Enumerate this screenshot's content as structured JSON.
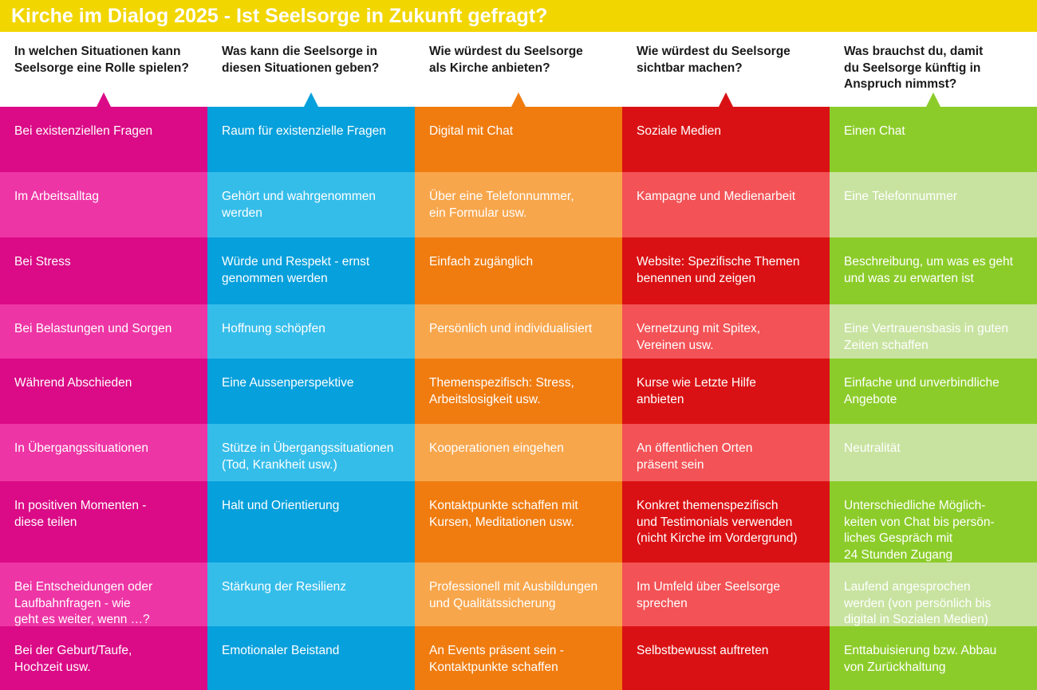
{
  "title": "Kirche im Dialog 2025 - Ist Seelsorge in Zukunft gefragt?",
  "colors": {
    "title_bar": "#f2d600",
    "columns": [
      {
        "dark": "#db0a86",
        "light": "#ee35a5"
      },
      {
        "dark": "#06a0dc",
        "light": "#35bdea"
      },
      {
        "dark": "#f07c10",
        "light": "#f8a64c"
      },
      {
        "dark": "#da1114",
        "light": "#f35256"
      },
      {
        "dark": "#8ccc2a",
        "light": "#c8e3a0"
      }
    ]
  },
  "columns": [
    {
      "heading": "In welchen Situationen kann\nSeelsorge eine Rolle spielen?",
      "items": [
        "Bei existenziellen Fragen",
        "Im Arbeitsalltag",
        "Bei Stress",
        "Bei Belastungen und Sorgen",
        "Während Abschieden",
        "In Übergangssituationen",
        "In positiven Momenten -\ndiese teilen",
        "Bei Entscheidungen oder\nLaufbahnfragen - wie\ngeht es weiter, wenn …?",
        "Bei der Geburt/Taufe,\nHochzeit usw."
      ]
    },
    {
      "heading": "Was kann die Seelsorge in\ndiesen Situationen geben?",
      "items": [
        "Raum für existenzielle Fragen",
        "Gehört und wahrgenommen\nwerden",
        "Würde und Respekt - ernst\ngenommen werden",
        "Hoffnung schöpfen",
        "Eine Aussenperspektive",
        "Stütze in Übergangssituationen\n(Tod, Krankheit usw.)",
        "Halt und Orientierung",
        "Stärkung der Resilienz",
        "Emotionaler Beistand"
      ]
    },
    {
      "heading": "Wie würdest du Seelsorge\nals Kirche anbieten?",
      "items": [
        "Digital mit Chat",
        "Über eine Telefonnummer,\nein Formular usw.",
        "Einfach zugänglich",
        "Persönlich und individualisiert",
        "Themenspezifisch: Stress,\nArbeitslosigkeit usw.",
        "Kooperationen eingehen",
        "Kontaktpunkte schaffen mit\nKursen, Meditationen usw.",
        "Professionell mit Ausbildungen\nund Qualitätssicherung",
        "An Events präsent sein -\nKontaktpunkte schaffen"
      ]
    },
    {
      "heading": "Wie würdest du Seelsorge\nsichtbar machen?",
      "items": [
        "Soziale Medien",
        "Kampagne und Medienarbeit",
        "Website: Spezifische Themen\nbenennen und zeigen",
        "Vernetzung mit Spitex,\nVereinen usw.",
        "Kurse wie Letzte Hilfe\nanbieten",
        "An öffentlichen Orten\npräsent sein",
        "Konkret themenspezifisch\nund Testimonials verwenden\n(nicht Kirche im Vordergrund)",
        "Im Umfeld über Seelsorge\nsprechen",
        "Selbstbewusst auftreten"
      ]
    },
    {
      "heading": "Was brauchst du, damit\ndu Seelsorge künftig in\nAnspruch nimmst?",
      "items": [
        "Einen Chat",
        "Eine Telefonnummer",
        "Beschreibung, um was es geht\nund was zu erwarten ist",
        "Eine Vertrauensbasis in guten\nZeiten schaffen",
        "Einfache und unverbindliche\nAngebote",
        "Neutralität",
        "Unterschiedliche Möglich-\nkeiten von Chat bis persön-\nliches Gespräch mit\n24 Stunden Zugang",
        "Laufend angesprochen\nwerden (von persönlich bis\ndigital in Sozialen Medien)",
        "Enttabuisierung bzw. Abbau\nvon Zurückhaltung"
      ]
    }
  ]
}
